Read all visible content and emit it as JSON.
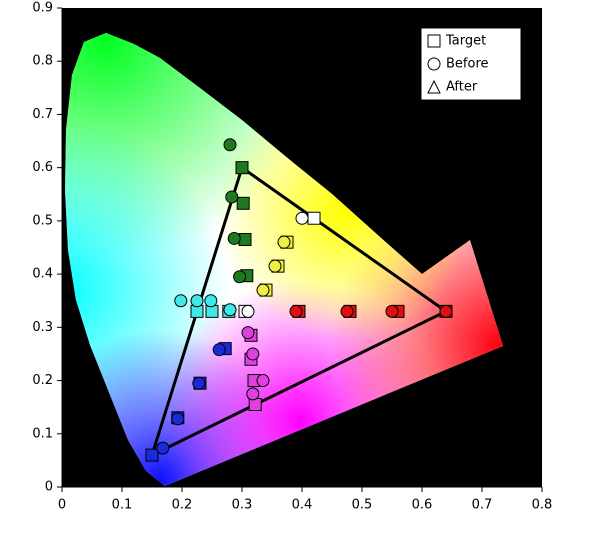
{
  "chart_data": {
    "type": "scatter",
    "xlim": [
      0,
      0.8
    ],
    "ylim": [
      0,
      0.9
    ],
    "xticks": [
      0,
      0.1,
      0.2,
      0.3,
      0.4,
      0.5,
      0.6,
      0.7,
      0.8
    ],
    "yticks": [
      0,
      0.1,
      0.2,
      0.3,
      0.4,
      0.5,
      0.6,
      0.7,
      0.8,
      0.9
    ],
    "gamut": {
      "x": [
        0.64,
        0.3,
        0.15
      ],
      "y": [
        0.33,
        0.6,
        0.06
      ]
    },
    "legend": "upper right",
    "series": [
      {
        "name": "Target",
        "marker": "square",
        "x": [
          0.64,
          0.56,
          0.48,
          0.395,
          0.42,
          0.375,
          0.36,
          0.34,
          0.3,
          0.302,
          0.305,
          0.308,
          0.225,
          0.25,
          0.278,
          0.305,
          0.15,
          0.193,
          0.23,
          0.272,
          0.315,
          0.315,
          0.32,
          0.322
        ],
        "y": [
          0.33,
          0.33,
          0.33,
          0.33,
          0.505,
          0.46,
          0.415,
          0.37,
          0.6,
          0.533,
          0.465,
          0.397,
          0.33,
          0.33,
          0.33,
          0.33,
          0.06,
          0.13,
          0.195,
          0.26,
          0.285,
          0.24,
          0.2,
          0.155
        ],
        "colors": [
          "#e01010",
          "#e01010",
          "#e01010",
          "#e01010",
          "#ffffff",
          "#f0f040",
          "#f0f040",
          "#f0f040",
          "#1e7a1e",
          "#1e7a1e",
          "#1e7a1e",
          "#1e7a1e",
          "#40e8e8",
          "#40e8e8",
          "#40e8e8",
          "#ffffff",
          "#1a2ad8",
          "#1a2ad8",
          "#1a2ad8",
          "#1a2ad8",
          "#e040e0",
          "#e040e0",
          "#e040e0",
          "#e040e0"
        ]
      },
      {
        "name": "Before",
        "marker": "circle",
        "x": [
          0.64,
          0.55,
          0.475,
          0.39,
          0.4,
          0.37,
          0.355,
          0.335,
          0.28,
          0.283,
          0.287,
          0.296,
          0.198,
          0.225,
          0.248,
          0.28,
          0.31,
          0.168,
          0.193,
          0.228,
          0.262,
          0.31,
          0.318,
          0.335,
          0.318
        ],
        "y": [
          0.33,
          0.33,
          0.33,
          0.33,
          0.505,
          0.46,
          0.415,
          0.37,
          0.643,
          0.545,
          0.467,
          0.395,
          0.35,
          0.35,
          0.35,
          0.333,
          0.33,
          0.073,
          0.128,
          0.195,
          0.258,
          0.29,
          0.25,
          0.2,
          0.175
        ],
        "colors": [
          "#e01010",
          "#e01010",
          "#e01010",
          "#e01010",
          "#ffffff",
          "#f0f040",
          "#f0f040",
          "#f0f040",
          "#1e7a1e",
          "#1e7a1e",
          "#1e7a1e",
          "#1e7a1e",
          "#40e8e8",
          "#40e8e8",
          "#40e8e8",
          "#40e8e8",
          "#ffffff",
          "#1a2ad8",
          "#1a2ad8",
          "#1a2ad8",
          "#1a2ad8",
          "#e040e0",
          "#e040e0",
          "#e040e0",
          "#e040e0"
        ]
      },
      {
        "name": "After",
        "marker": "triangle",
        "x": [],
        "y": [],
        "colors": []
      }
    ]
  }
}
